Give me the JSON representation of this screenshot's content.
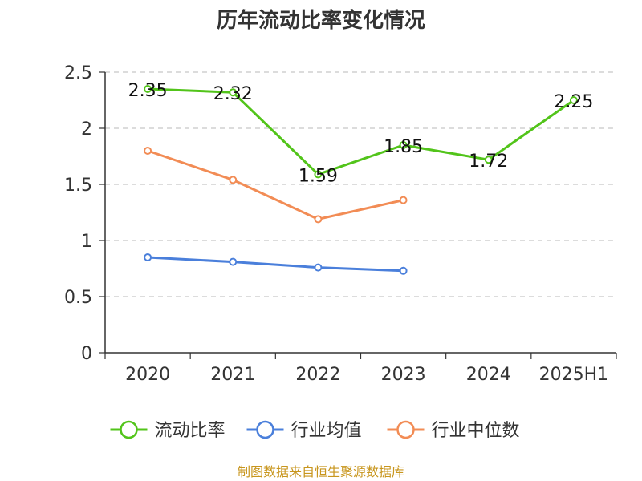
{
  "chart_data": {
    "type": "line",
    "title": "历年流动比率变化情况",
    "categories": [
      "2020",
      "2021",
      "2022",
      "2023",
      "2024",
      "2025H1"
    ],
    "ylim": [
      0,
      2.5
    ],
    "yticks": [
      "0",
      "0.5",
      "1",
      "1.5",
      "2",
      "2.5"
    ],
    "grid": true,
    "legend_position": "bottom",
    "series": [
      {
        "name": "流动比率",
        "color": "#52c41a",
        "values": [
          2.35,
          2.32,
          1.59,
          1.85,
          1.72,
          2.25
        ],
        "labels": [
          "2.35",
          "2.32",
          "1.59",
          "1.85",
          "1.72",
          "2.25"
        ],
        "show_labels": true
      },
      {
        "name": "行业均值",
        "color": "#4a7fdb",
        "values": [
          0.85,
          0.81,
          0.76,
          0.73,
          null,
          null
        ],
        "show_labels": false
      },
      {
        "name": "行业中位数",
        "color": "#f28c55",
        "values": [
          1.8,
          1.54,
          1.19,
          1.36,
          null,
          null
        ],
        "show_labels": false
      }
    ]
  },
  "source": {
    "text": "制图数据来自恒生聚源数据库",
    "color": "#c8961e"
  }
}
